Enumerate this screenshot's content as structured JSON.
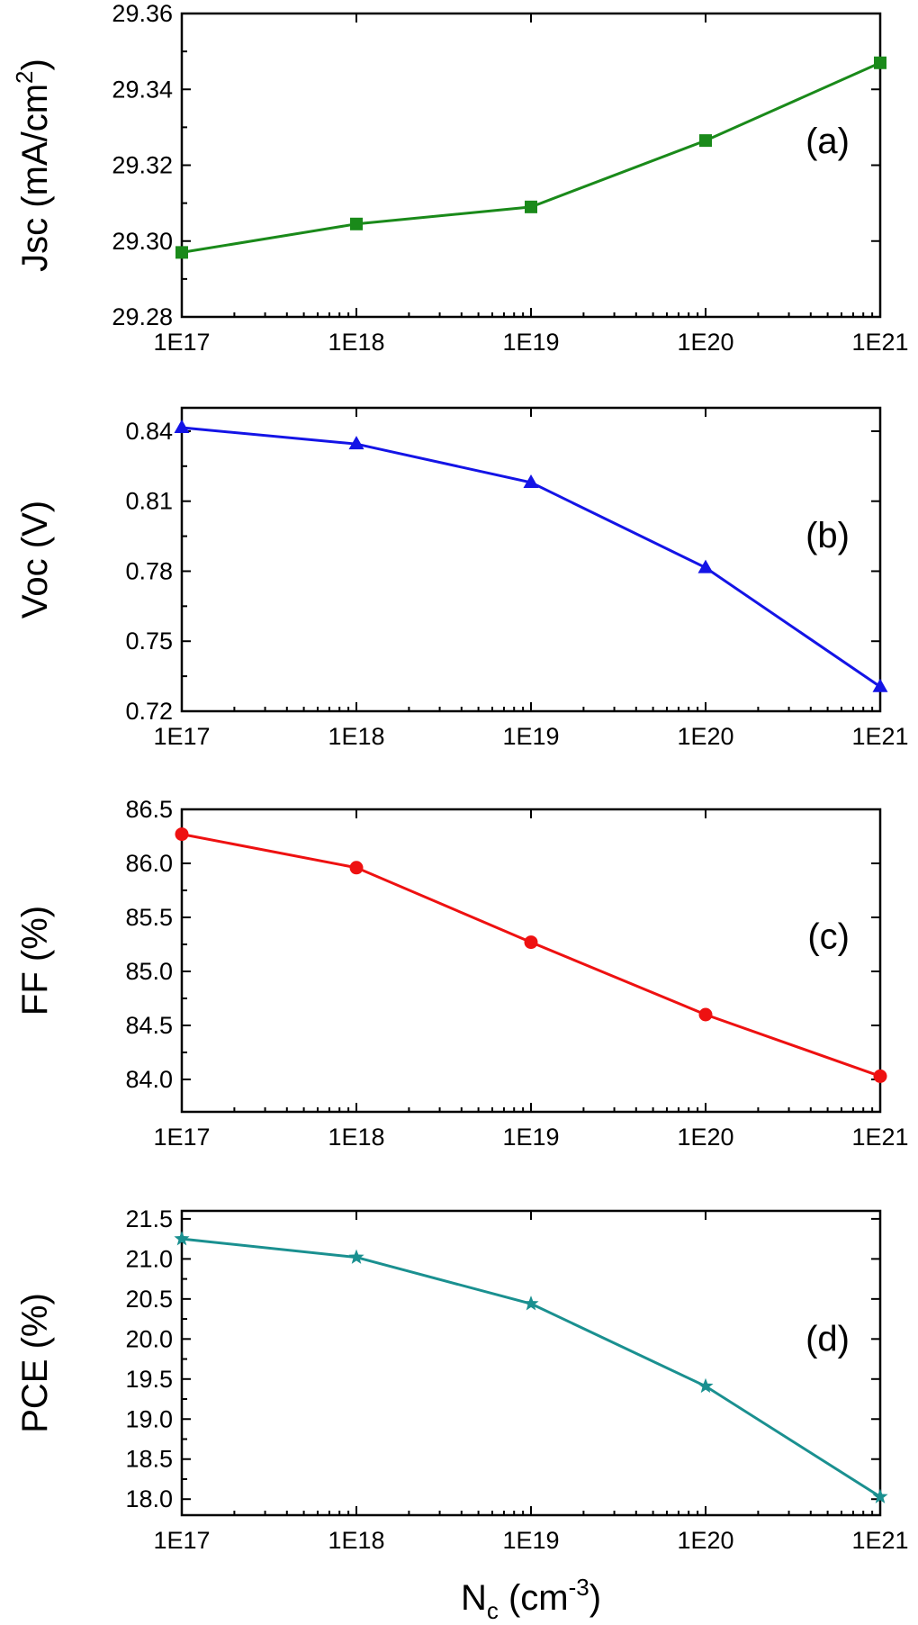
{
  "chart_data": [
    {
      "type": "line",
      "panel_label": "(a)",
      "ylabel_main": "Jsc (mA/cm",
      "ylabel_sup": "2",
      "ylabel_tail": ")",
      "xlabel_main": "",
      "xlabel_sub": "",
      "xlabel_mid": "",
      "xlabel_sup": "",
      "xlabel_tail": "",
      "categories": [
        "1E17",
        "1E18",
        "1E19",
        "1E20",
        "1E21"
      ],
      "ylim": [
        29.28,
        29.36
      ],
      "y_ticks": [
        "29.28",
        "29.30",
        "29.32",
        "29.34",
        "29.36"
      ],
      "series": [
        {
          "values": [
            29.297,
            29.3045,
            29.309,
            29.3265,
            29.347
          ],
          "color": "#1a8a1a",
          "marker": "square"
        }
      ],
      "grid": false
    },
    {
      "type": "line",
      "panel_label": "(b)",
      "ylabel_main": "Voc (V)",
      "ylabel_sup": "",
      "ylabel_tail": "",
      "xlabel_main": "",
      "xlabel_sub": "",
      "xlabel_mid": "",
      "xlabel_sup": "",
      "xlabel_tail": "",
      "categories": [
        "1E17",
        "1E18",
        "1E19",
        "1E20",
        "1E21"
      ],
      "ylim": [
        0.72,
        0.85
      ],
      "y_ticks": [
        "0.72",
        "0.75",
        "0.78",
        "0.81",
        "0.84"
      ],
      "series": [
        {
          "values": [
            0.8415,
            0.8345,
            0.818,
            0.7815,
            0.7305
          ],
          "color": "#1414e6",
          "marker": "triangle"
        }
      ],
      "grid": false
    },
    {
      "type": "line",
      "panel_label": "(c)",
      "ylabel_main": "FF (%)",
      "ylabel_sup": "",
      "ylabel_tail": "",
      "xlabel_main": "",
      "xlabel_sub": "",
      "xlabel_mid": "",
      "xlabel_sup": "",
      "xlabel_tail": "",
      "categories": [
        "1E17",
        "1E18",
        "1E19",
        "1E20",
        "1E21"
      ],
      "ylim": [
        83.7,
        86.5
      ],
      "y_ticks": [
        "84.0",
        "84.5",
        "85.0",
        "85.5",
        "86.0",
        "86.5"
      ],
      "series": [
        {
          "values": [
            86.27,
            85.96,
            85.27,
            84.6,
            84.03
          ],
          "color": "#ee1111",
          "marker": "circle"
        }
      ],
      "grid": false
    },
    {
      "type": "line",
      "panel_label": "(d)",
      "ylabel_main": "PCE (%)",
      "ylabel_sup": "",
      "ylabel_tail": "",
      "xlabel_main": "N",
      "xlabel_sub": "c",
      "xlabel_mid": " (cm",
      "xlabel_sup": "-3",
      "xlabel_tail": ")",
      "categories": [
        "1E17",
        "1E18",
        "1E19",
        "1E20",
        "1E21"
      ],
      "ylim": [
        17.8,
        21.6
      ],
      "y_ticks": [
        "18.0",
        "18.5",
        "19.0",
        "19.5",
        "20.0",
        "20.5",
        "21.0",
        "21.5"
      ],
      "series": [
        {
          "values": [
            21.25,
            21.02,
            20.44,
            19.41,
            18.03
          ],
          "color": "#1a9090",
          "marker": "star"
        }
      ],
      "grid": false
    }
  ]
}
